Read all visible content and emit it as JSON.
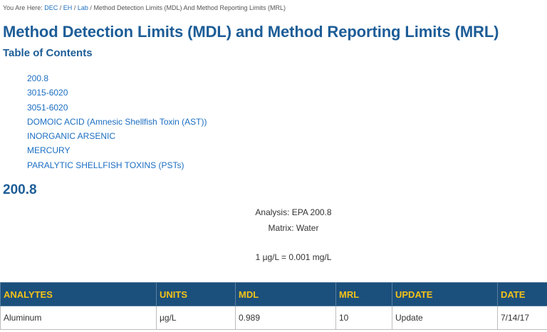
{
  "breadcrumb": {
    "prefix": "You Are Here:",
    "links": [
      "DEC",
      "EH",
      "Lab"
    ],
    "separator": "/",
    "current": "Method Detection Limits (MDL) And Method Reporting Limits (MRL)"
  },
  "page_title": "Method Detection Limits (MDL) and Method Reporting Limits (MRL)",
  "toc": {
    "title": "Table of Contents",
    "items": [
      "200.8",
      "3015-6020",
      "3051-6020",
      "DOMOIC ACID (Amnesic Shellfish Toxin (AST))",
      "INORGANIC ARSENIC",
      "MERCURY",
      "PARALYTIC SHELLFISH TOXINS (PSTs)"
    ]
  },
  "section": {
    "heading": "200.8",
    "analysis": "Analysis: EPA 200.8",
    "matrix": "Matrix: Water",
    "conversion": "1 µg/L = 0.001 mg/L"
  },
  "table": {
    "headers": [
      "ANALYTES",
      "UNITS",
      "MDL",
      "MRL",
      "UPDATE",
      "DATE"
    ],
    "rows": [
      [
        "Aluminum",
        "µg/L",
        "0.989",
        "10",
        "Update",
        "7/14/17"
      ]
    ]
  },
  "colors": {
    "heading": "#1d5d97",
    "link": "#1b6ec2",
    "table_header_bg": "#1b4f7c",
    "table_header_text": "#f3c218"
  }
}
